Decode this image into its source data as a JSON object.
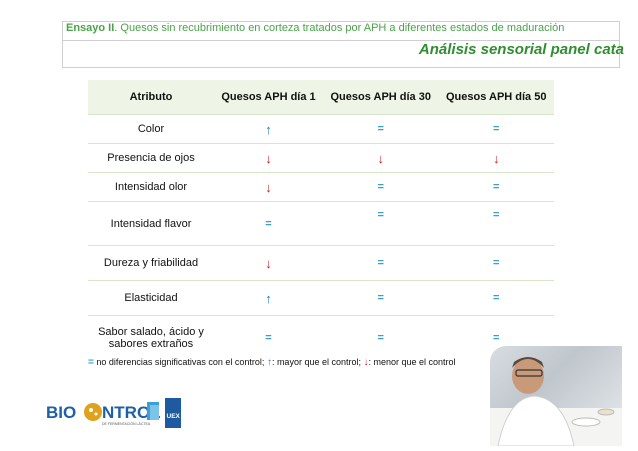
{
  "header": {
    "ensayo_label": "Ensayo II",
    "ensayo_rest": ". Quesos sin recubrimiento en corteza tratados por APH a diferentes estados de maduración",
    "subtitle": "Análisis sensorial panel cata"
  },
  "table": {
    "columns": [
      "Atributo",
      "Quesos APH día 1",
      "Quesos APH día 30",
      "Quesos APH día 50"
    ],
    "rows": [
      {
        "attr": "Color",
        "d1": "↑",
        "d30": "=",
        "d50": "="
      },
      {
        "attr": "Presencia de ojos",
        "d1": "↓",
        "d30": "↓",
        "d50": "↓"
      },
      {
        "attr": "Intensidad olor",
        "d1": "↓",
        "d30": "=",
        "d50": "="
      },
      {
        "attr": "Intensidad flavor",
        "d1": "=",
        "d30": "=",
        "d50": "="
      },
      {
        "attr": "Dureza y friabilidad",
        "d1": "↓",
        "d30": "=",
        "d50": "="
      },
      {
        "attr": "Elasticidad",
        "d1": "↑",
        "d30": "=",
        "d50": "="
      },
      {
        "attr": "Sabor salado, ácido y sabores extraños",
        "d1": "=",
        "d30": "=",
        "d50": "="
      }
    ]
  },
  "legend": {
    "eq_symbol": "=",
    "eq_text": " no diferencias significativas con el control; ",
    "up_symbol": "↑",
    "up_text": ": mayor que el control; ",
    "down_symbol": "↓",
    "down_text": ": menor que el control"
  },
  "logo": {
    "text_left": "BIO",
    "text_right": "NTROL",
    "subtext": "DE FERMENTACIÓN LÁCTEA",
    "badge": "UEX"
  },
  "colors": {
    "accent_green": "#2f8f2f",
    "up_blue": "#1e78c8",
    "down_red": "#d21e1e",
    "eq_teal": "#3aa0c8",
    "header_row_bg": "#eef5e6"
  }
}
